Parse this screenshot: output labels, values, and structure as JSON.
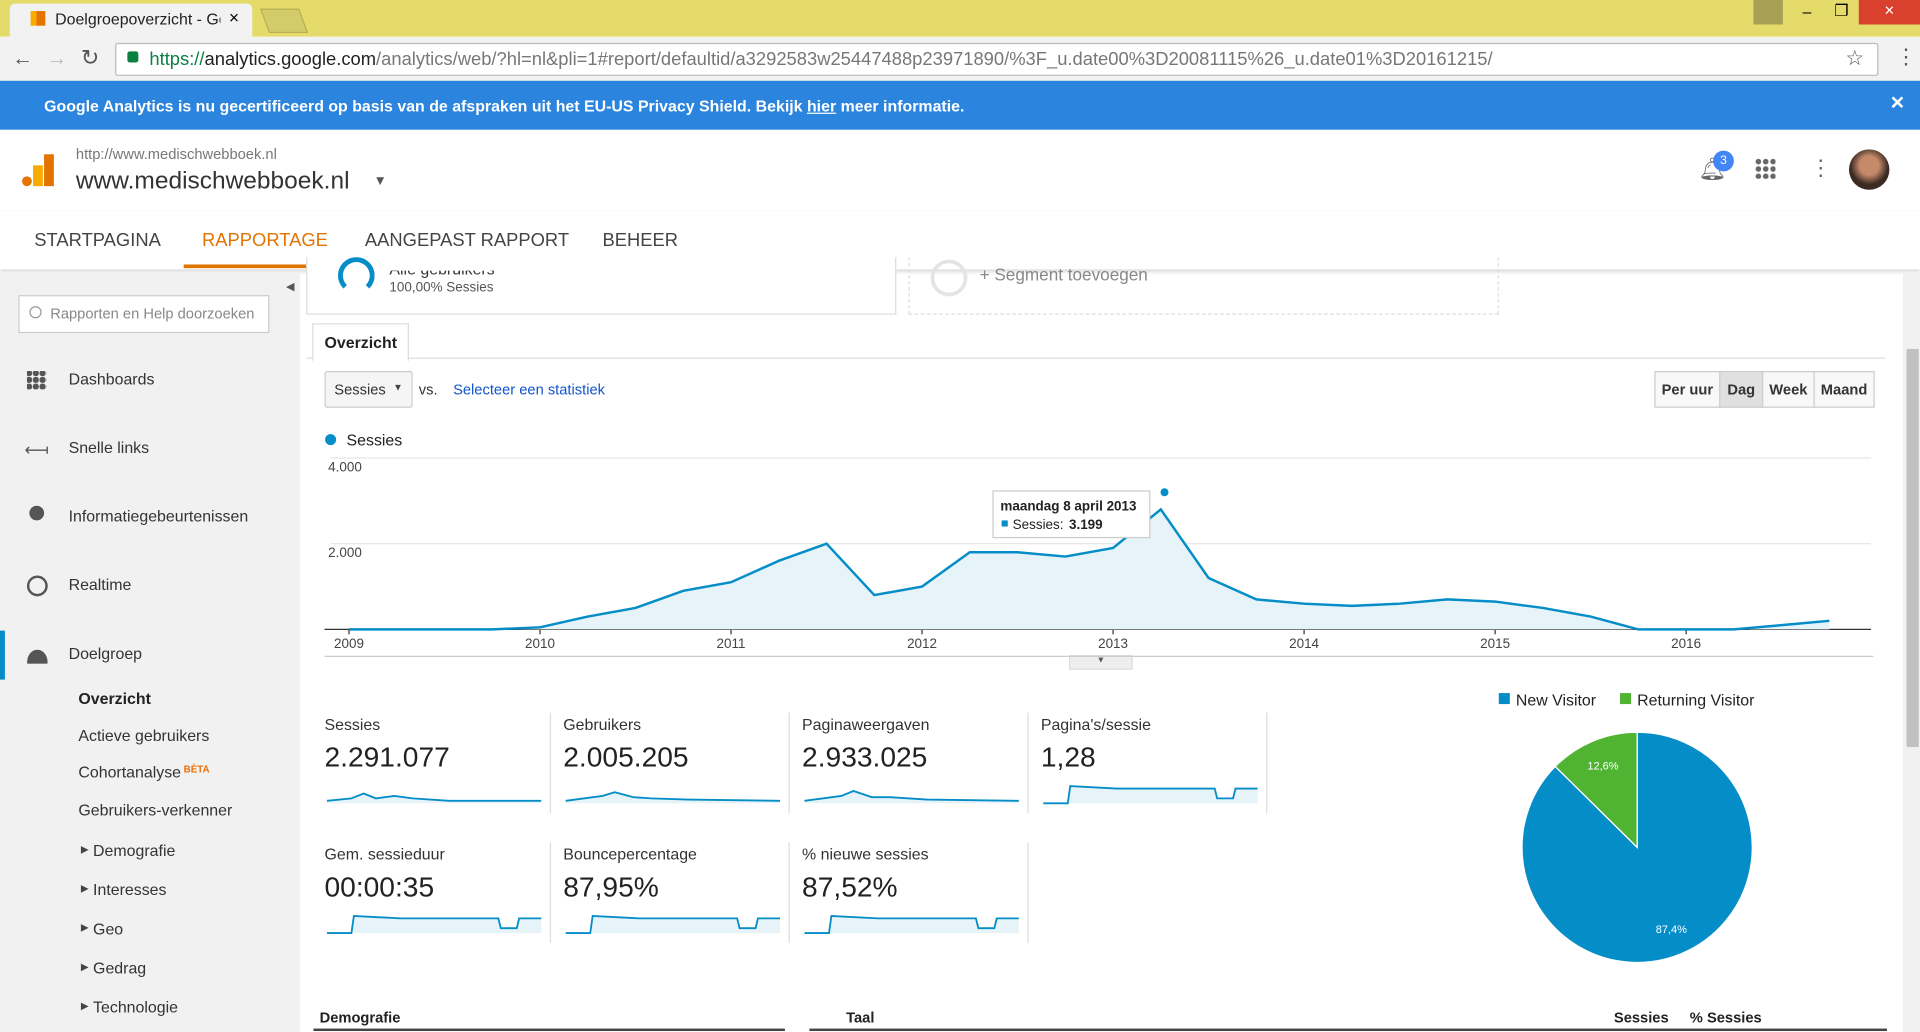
{
  "browser": {
    "tab_title": "Doelgroepoverzicht - Go",
    "url_prefix": "https://",
    "url_host": "analytics.google.com",
    "url_path": "/analytics/web/?hl=nl&pli=1#report/defaultid/a3292583w25447488p23971890/%3F_u.date00%3D20081115%26_u.date01%3D20161215/"
  },
  "banner": {
    "text_before": "Google Analytics is nu gecertificeerd op basis van de afspraken uit het EU-US Privacy Shield. Bekijk ",
    "link": "hier",
    "text_after": " meer informatie."
  },
  "header": {
    "site_url": "http://www.medischwebboek.nl",
    "site_name": "www.medischwebboek.nl",
    "notifications": "3"
  },
  "nav": [
    "STARTPAGINA",
    "RAPPORTAGE",
    "AANGEPAST RAPPORT",
    "BEHEER"
  ],
  "sidebar": {
    "search_placeholder": "Rapporten en Help doorzoeken",
    "items": [
      "Dashboards",
      "Snelle links",
      "Informatiegebeurtenissen",
      "Realtime",
      "Doelgroep"
    ],
    "subitems": [
      "Overzicht",
      "Actieve gebruikers",
      "Cohortanalyse",
      "Gebruikers-verkenner",
      "Demografie",
      "Interesses",
      "Geo",
      "Gedrag",
      "Technologie"
    ],
    "beta": "BÈTA"
  },
  "segments": {
    "segment_name": "Alle gebruikers",
    "segment_share": "100,00% Sessies",
    "add": "+ Segment toevoegen"
  },
  "tab": "Overzicht",
  "controls": {
    "metric": "Sessies",
    "vs": "vs.",
    "select": "Selecteer een statistiek",
    "granularity": [
      "Per uur",
      "Dag",
      "Week",
      "Maand"
    ]
  },
  "chart_data": [
    {
      "type": "line",
      "series": [
        {
          "name": "Sessies",
          "color": "#058dc7",
          "values": [
            0,
            0,
            0,
            0,
            50,
            300,
            500,
            900,
            1100,
            1600,
            2000,
            800,
            1000,
            1800,
            1800,
            1700,
            1900,
            2800,
            1200,
            700,
            600,
            550,
            600,
            700,
            650,
            500,
            300,
            0,
            0,
            0,
            100,
            200
          ]
        }
      ],
      "x": [
        2009,
        2009.25,
        2009.5,
        2009.75,
        2010,
        2010.25,
        2010.5,
        2010.75,
        2011,
        2011.25,
        2011.5,
        2011.75,
        2012,
        2012.25,
        2012.5,
        2012.75,
        2013,
        2013.25,
        2013.5,
        2013.75,
        2014,
        2014.25,
        2014.5,
        2014.75,
        2015,
        2015.25,
        2015.5,
        2015.75,
        2016,
        2016.25,
        2016.5,
        2016.75
      ],
      "xlim": [
        2009,
        2016.95
      ],
      "xticks": [
        2009,
        2010,
        2011,
        2012,
        2013,
        2014,
        2015,
        2016
      ],
      "ylim": [
        0,
        4000
      ],
      "yticks": [
        {
          "value": 2000,
          "label": "2.000"
        },
        {
          "value": 4000,
          "label": "4.000"
        }
      ],
      "grid": true
    },
    {
      "type": "pie",
      "categories": [
        "New Visitor",
        "Returning Visitor"
      ],
      "values": [
        87.4,
        12.6
      ],
      "value_labels": [
        "87,4%",
        "12,6%"
      ],
      "colors": [
        "#058dc7",
        "#50b432"
      ],
      "legend": "top"
    }
  ],
  "tooltip": {
    "date": "maandag 8 april 2013",
    "label": "Sessies:",
    "value": "3.199"
  },
  "metrics": [
    {
      "name": "Sessies",
      "value": "2.291.077"
    },
    {
      "name": "Gebruikers",
      "value": "2.005.205"
    },
    {
      "name": "Paginaweergaven",
      "value": "2.933.025"
    },
    {
      "name": "Pagina's/sessie",
      "value": "1,28"
    },
    {
      "name": "Gem. sessieduur",
      "value": "00:00:35"
    },
    {
      "name": "Bouncepercentage",
      "value": "87,95%"
    },
    {
      "name": "% nieuwe sessies",
      "value": "87,52%"
    }
  ],
  "table_headers": {
    "left": "Demografie",
    "middle": "Taal",
    "sessions": "Sessies",
    "pct": "% Sessies"
  }
}
